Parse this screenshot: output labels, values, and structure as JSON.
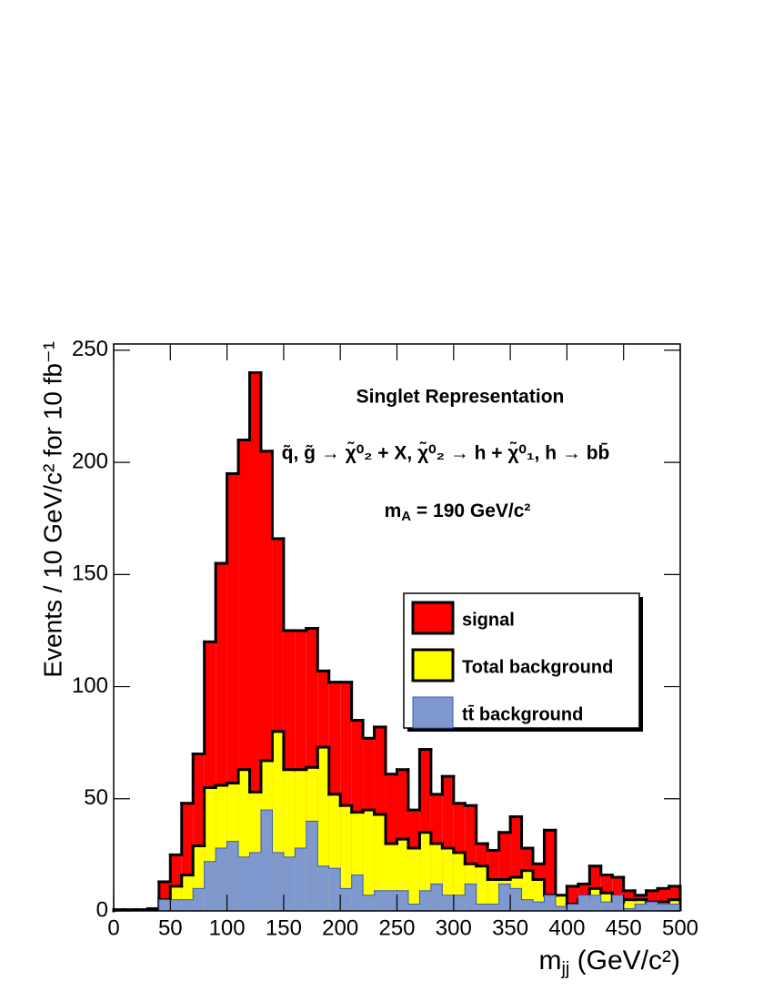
{
  "chart_data": {
    "type": "histogram",
    "annotations": [
      "Singlet Representation",
      "q̃, g̃ → χ̃⁰₂ + X,  χ̃⁰₂ → h + χ̃⁰₁, h → bb̄",
      [
        "m",
        "A",
        " = 190 GeV/c²"
      ]
    ],
    "x_label": [
      "m",
      "jj",
      " (GeV/c²)"
    ],
    "y_label": "Events / 10 GeV/c² for 10 fb⁻¹",
    "bins": [
      0,
      10,
      20,
      30,
      40,
      50,
      60,
      70,
      80,
      90,
      100,
      110,
      120,
      130,
      140,
      150,
      160,
      170,
      180,
      190,
      200,
      210,
      220,
      230,
      240,
      250,
      260,
      270,
      280,
      290,
      300,
      310,
      320,
      330,
      340,
      350,
      360,
      370,
      380,
      390,
      400,
      410,
      420,
      430,
      440,
      450,
      460,
      470,
      480,
      490,
      500
    ],
    "series": [
      {
        "name": "signal",
        "color": "#ff0000",
        "edgecolor": "#000000",
        "values": [
          0.5,
          0.5,
          0.5,
          1,
          13,
          25,
          48,
          70,
          120,
          155,
          195,
          210,
          240,
          205,
          166,
          125,
          125,
          126,
          107,
          102,
          102,
          85,
          77,
          82,
          61,
          63,
          45,
          72,
          52,
          60,
          48,
          47,
          30,
          27,
          35,
          42,
          28,
          21,
          36,
          2,
          11,
          12,
          20,
          16,
          15,
          9,
          7,
          9,
          10,
          11
        ]
      },
      {
        "name": "Total background",
        "color": "#ffff00",
        "edgecolor": "#000000",
        "values": [
          0.5,
          0.5,
          0.5,
          0.5,
          5,
          11,
          16,
          29,
          55,
          56,
          57,
          63,
          53,
          67,
          80,
          63,
          63,
          64,
          73,
          52,
          47,
          44,
          45,
          43,
          30,
          32,
          28,
          35,
          30,
          28,
          26,
          21,
          20,
          14,
          14,
          15,
          18,
          14,
          7,
          7,
          3,
          5,
          10,
          8,
          4,
          5,
          5,
          4,
          4,
          5
        ]
      },
      {
        "name": "tt̄ background",
        "color": "#7f99cf",
        "edgecolor": "#3a56c0",
        "values": [
          0,
          0,
          0,
          0,
          5,
          5,
          5,
          10,
          22,
          28,
          31,
          24,
          26,
          45,
          26,
          24,
          28,
          40,
          20,
          19,
          10,
          16,
          7,
          9,
          9,
          9,
          3,
          9,
          12,
          7,
          7,
          12,
          3,
          3,
          12,
          10,
          5,
          4,
          7,
          2,
          3,
          7,
          7,
          4,
          7,
          1,
          3,
          4,
          3,
          3
        ]
      }
    ],
    "xlim": [
      0,
      500
    ],
    "xticks": [
      0,
      50,
      100,
      150,
      200,
      250,
      300,
      350,
      400,
      450,
      500
    ],
    "ylim": [
      0,
      252.8
    ],
    "yticks": [
      0,
      50,
      100,
      150,
      200,
      250
    ],
    "legend": "right"
  }
}
